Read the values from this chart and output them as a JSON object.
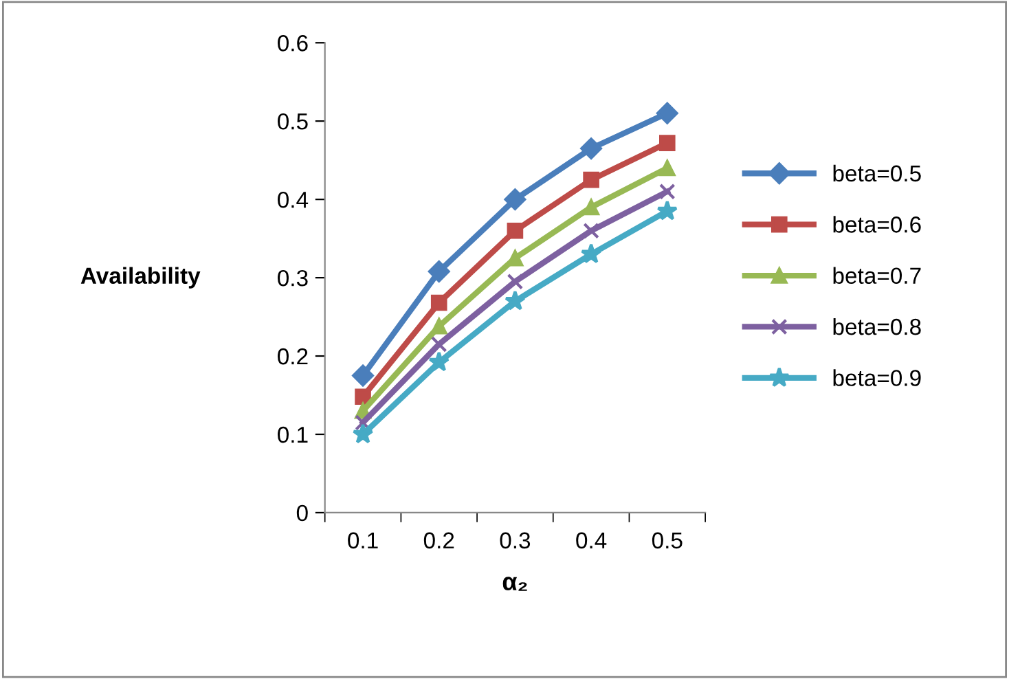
{
  "chart_data": {
    "type": "line",
    "xlabel": "α₂",
    "ylabel": "Availability",
    "categories": [
      "0.1",
      "0.2",
      "0.3",
      "0.4",
      "0.5"
    ],
    "series": [
      {
        "name": "beta=0.5",
        "color": "#4a7ebb",
        "marker": "diamond",
        "values": [
          0.175,
          0.308,
          0.4,
          0.465,
          0.51
        ]
      },
      {
        "name": "beta=0.6",
        "color": "#be4b48",
        "marker": "square",
        "values": [
          0.148,
          0.268,
          0.36,
          0.425,
          0.472
        ]
      },
      {
        "name": "beta=0.7",
        "color": "#98b954",
        "marker": "triangle",
        "values": [
          0.13,
          0.238,
          0.325,
          0.39,
          0.44
        ]
      },
      {
        "name": "beta=0.8",
        "color": "#7d60a0",
        "marker": "cross",
        "values": [
          0.115,
          0.215,
          0.295,
          0.36,
          0.41
        ]
      },
      {
        "name": "beta=0.9",
        "color": "#46aac5",
        "marker": "star",
        "values": [
          0.1,
          0.192,
          0.27,
          0.33,
          0.385
        ]
      }
    ],
    "ylim": [
      0,
      0.6
    ],
    "yticks": [
      0,
      0.1,
      0.2,
      0.3,
      0.4,
      0.5,
      0.6
    ],
    "grid": false,
    "legend": "right",
    "line_style": "solid"
  }
}
